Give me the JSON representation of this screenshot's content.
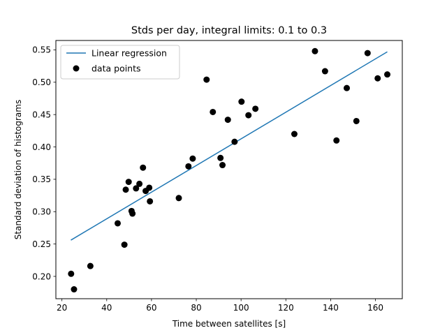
{
  "chart_data": {
    "type": "scatter",
    "title": "Stds per day, integral limits: 0.1 to 0.3",
    "xlabel": "Time between satellites [s]",
    "ylabel": "Standard deviation of histograms",
    "xlim": [
      17.3,
      172.0
    ],
    "ylim": [
      0.1655,
      0.5645
    ],
    "xticks": [
      20,
      40,
      60,
      80,
      100,
      120,
      140,
      160
    ],
    "xtick_labels": [
      "20",
      "40",
      "60",
      "80",
      "100",
      "120",
      "140",
      "160"
    ],
    "yticks": [
      0.2,
      0.25,
      0.3,
      0.35,
      0.4,
      0.45,
      0.5,
      0.55
    ],
    "ytick_labels": [
      "0.20",
      "0.25",
      "0.30",
      "0.35",
      "0.40",
      "0.45",
      "0.50",
      "0.55"
    ],
    "legend": {
      "placement": "top-left",
      "entries": [
        "Linear regression",
        "data points"
      ]
    },
    "grid": false,
    "colors": {
      "line": "#1f77b4",
      "points": "#000000"
    },
    "series": [
      {
        "name": "Linear regression",
        "kind": "line",
        "x": [
          24.0,
          165.3
        ],
        "y": [
          0.256,
          0.547
        ]
      },
      {
        "name": "data points",
        "kind": "scatter",
        "x": [
          24.1,
          25.4,
          32.7,
          44.9,
          47.9,
          48.5,
          49.8,
          51.1,
          51.5,
          53.1,
          54.6,
          56.2,
          57.4,
          59.0,
          59.3,
          72.2,
          76.5,
          78.4,
          84.6,
          87.4,
          90.8,
          91.7,
          94.1,
          97.1,
          100.2,
          103.3,
          106.4,
          123.8,
          133.0,
          137.5,
          142.6,
          147.2,
          151.5,
          156.5,
          161.0,
          165.3
        ],
        "y": [
          0.204,
          0.18,
          0.216,
          0.282,
          0.249,
          0.334,
          0.346,
          0.301,
          0.297,
          0.336,
          0.343,
          0.368,
          0.332,
          0.337,
          0.316,
          0.321,
          0.37,
          0.382,
          0.504,
          0.454,
          0.383,
          0.372,
          0.442,
          0.408,
          0.47,
          0.449,
          0.459,
          0.42,
          0.548,
          0.517,
          0.41,
          0.491,
          0.44,
          0.545,
          0.506,
          0.512
        ]
      }
    ]
  }
}
